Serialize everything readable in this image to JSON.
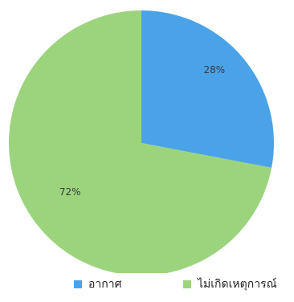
{
  "chart_data": {
    "type": "pie",
    "slices": [
      {
        "label": "อากาศ",
        "value": 28,
        "value_label": "28%",
        "color": "#4aa3e8"
      },
      {
        "label": "ไม่เกิดเหตุการณ์",
        "value": 72,
        "value_label": "72%",
        "color": "#9cd47e"
      }
    ],
    "legend_placement": "bottom"
  }
}
